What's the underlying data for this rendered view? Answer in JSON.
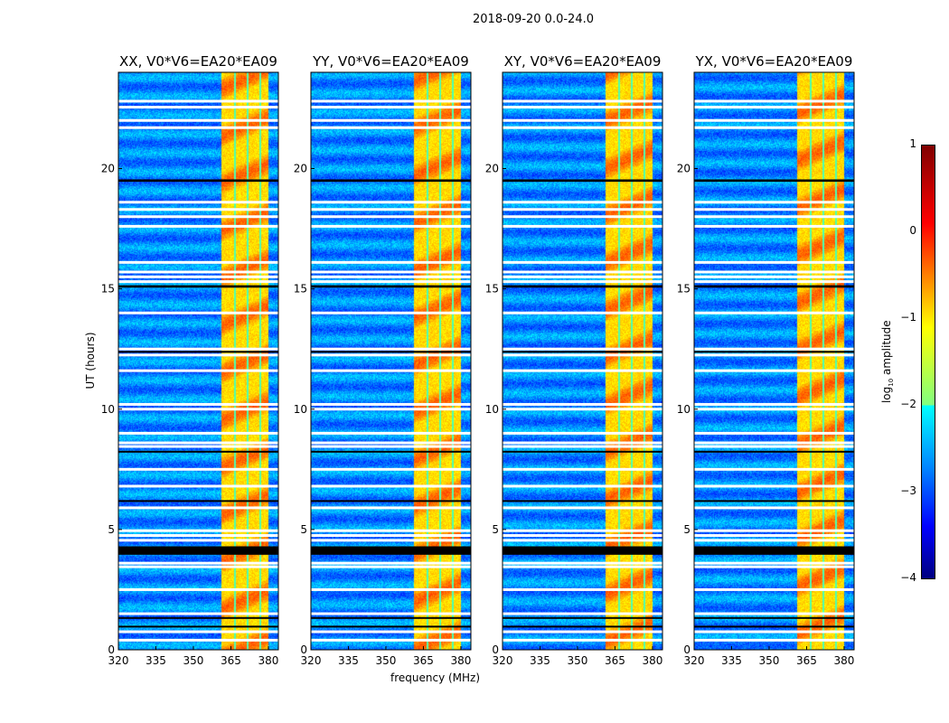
{
  "suptitle": "2018-09-20 0.0-24.0",
  "chart_data": {
    "type": "heatmap",
    "title": "2018-09-20 0.0-24.0",
    "xlabel": "frequency (MHz)",
    "ylabel": "UT (hours)",
    "xlim": [
      320,
      384
    ],
    "ylim": [
      0,
      24
    ],
    "xticks": [
      320,
      335,
      350,
      365,
      380
    ],
    "yticks": [
      0,
      5,
      10,
      15,
      20
    ],
    "panels": [
      {
        "title": "XX, V0*V6=EA20*EA09"
      },
      {
        "title": "YY, V0*V6=EA20*EA09"
      },
      {
        "title": "XY, V0*V6=EA20*EA09"
      },
      {
        "title": "YX, V0*V6=EA20*EA09"
      }
    ],
    "signal_band_mhz": [
      361,
      380
    ],
    "channel_gaps_mhz": [
      366.5,
      371.5,
      376.5
    ],
    "flagged_ut_white": [
      0.4,
      0.75,
      1.5,
      2.5,
      3.45,
      3.6,
      4.55,
      4.75,
      4.95,
      5.9,
      6.8,
      7.5,
      8.45,
      8.6,
      9.0,
      10.0,
      10.2,
      11.6,
      12.25,
      12.5,
      14.0,
      15.3,
      15.5,
      15.7,
      16.1,
      17.6,
      18.0,
      18.3,
      18.6,
      21.7,
      22.0,
      22.55,
      22.8
    ],
    "flagged_ut_black": [
      [
        3.95,
        4.3
      ],
      [
        19.45,
        19.55
      ],
      [
        15.05,
        15.15
      ],
      [
        12.35,
        12.42
      ],
      [
        8.2,
        8.27
      ],
      [
        6.15,
        6.22
      ],
      [
        1.3,
        1.36
      ],
      [
        0.95,
        1.0
      ]
    ],
    "colorbar": {
      "label": "log10 amplitude",
      "range": [
        -4,
        1
      ],
      "ticks": [
        "1",
        "0",
        "−1",
        "−2",
        "−3",
        "−4"
      ],
      "colormap": "jet"
    }
  }
}
